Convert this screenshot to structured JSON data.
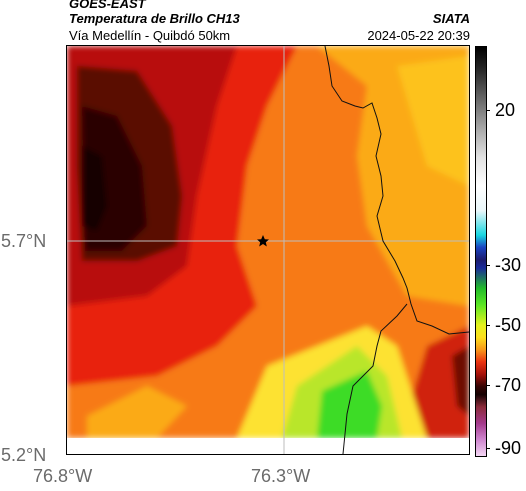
{
  "header": {
    "satellite": "GOES-EAST",
    "product": "Temperatura de Brillo CH13",
    "route": "Vía Medellín - Quibdó 50km",
    "organization": "SIATA",
    "timestamp": "2024-05-22 20:39"
  },
  "map": {
    "lat_labels": [
      "5.7°N",
      "5.2°N"
    ],
    "lon_labels": [
      "76.8°W",
      "76.3°W"
    ],
    "marker": "star-marker",
    "colors": {
      "very_cold": "#1a0303",
      "cold": "#5a0b05",
      "deep_red": "#b80f07",
      "red": "#e8240e",
      "orange": "#f77a14",
      "amber": "#fbaa18",
      "yellow": "#fde233",
      "green": "#3cdc28",
      "grid": "#bdbdbd"
    }
  },
  "colorbar": {
    "labels": [
      "20",
      "-30",
      "-50",
      "-70",
      "-90"
    ],
    "unit": ""
  }
}
